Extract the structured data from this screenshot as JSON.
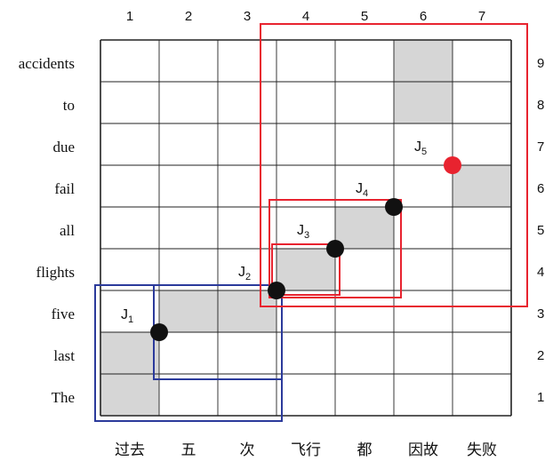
{
  "column_numbers": [
    "1",
    "2",
    "3",
    "4",
    "5",
    "6",
    "7"
  ],
  "row_numbers": [
    "9",
    "8",
    "7",
    "6",
    "5",
    "4",
    "3",
    "2",
    "1"
  ],
  "source_words": [
    "过去",
    "五",
    "次",
    "飞行",
    "都",
    "因故",
    "失败"
  ],
  "target_words": [
    "accidents",
    "to",
    "due",
    "fail",
    "all",
    "flights",
    "five",
    "last",
    "The"
  ],
  "alignments": [
    {
      "col": 1,
      "row": 1
    },
    {
      "col": 1,
      "row": 2
    },
    {
      "col": 2,
      "row": 3
    },
    {
      "col": 3,
      "row": 3
    },
    {
      "col": 4,
      "row": 4
    },
    {
      "col": 5,
      "row": 5
    },
    {
      "col": 6,
      "row": 8
    },
    {
      "col": 6,
      "row": 9
    },
    {
      "col": 7,
      "row": 6
    }
  ],
  "junctions": [
    {
      "label": "J",
      "sub": "1",
      "col_boundary": 1,
      "row_boundary": 2,
      "color": "#111111"
    },
    {
      "label": "J",
      "sub": "2",
      "col_boundary": 3,
      "row_boundary": 3,
      "color": "#111111"
    },
    {
      "label": "J",
      "sub": "3",
      "col_boundary": 4,
      "row_boundary": 4,
      "color": "#111111"
    },
    {
      "label": "J",
      "sub": "4",
      "col_boundary": 5,
      "row_boundary": 5,
      "color": "#111111"
    },
    {
      "label": "J",
      "sub": "5",
      "col_boundary": 6,
      "row_boundary": 6,
      "color": "#e8232f"
    }
  ],
  "spans": [
    {
      "color": "blue",
      "col_from": 1,
      "col_to": 3,
      "row_from": 1,
      "row_to": 3
    },
    {
      "color": "blue",
      "col_from": 2,
      "col_to": 3,
      "row_from": 2,
      "row_to": 3
    },
    {
      "color": "red",
      "col_from": 4,
      "col_to": 7,
      "row_from": 4,
      "row_to": 9
    },
    {
      "color": "red",
      "col_from": 4,
      "col_to": 5,
      "row_from": 4,
      "row_to": 5
    },
    {
      "color": "red",
      "col_from": 4,
      "col_to": 4,
      "row_from": 4,
      "row_to": 4
    }
  ],
  "colors": {
    "grid": "#222222",
    "shade": "#d6d6d6",
    "blue": "#2b3a9b",
    "red": "#e8232f",
    "dot": "#111111"
  }
}
